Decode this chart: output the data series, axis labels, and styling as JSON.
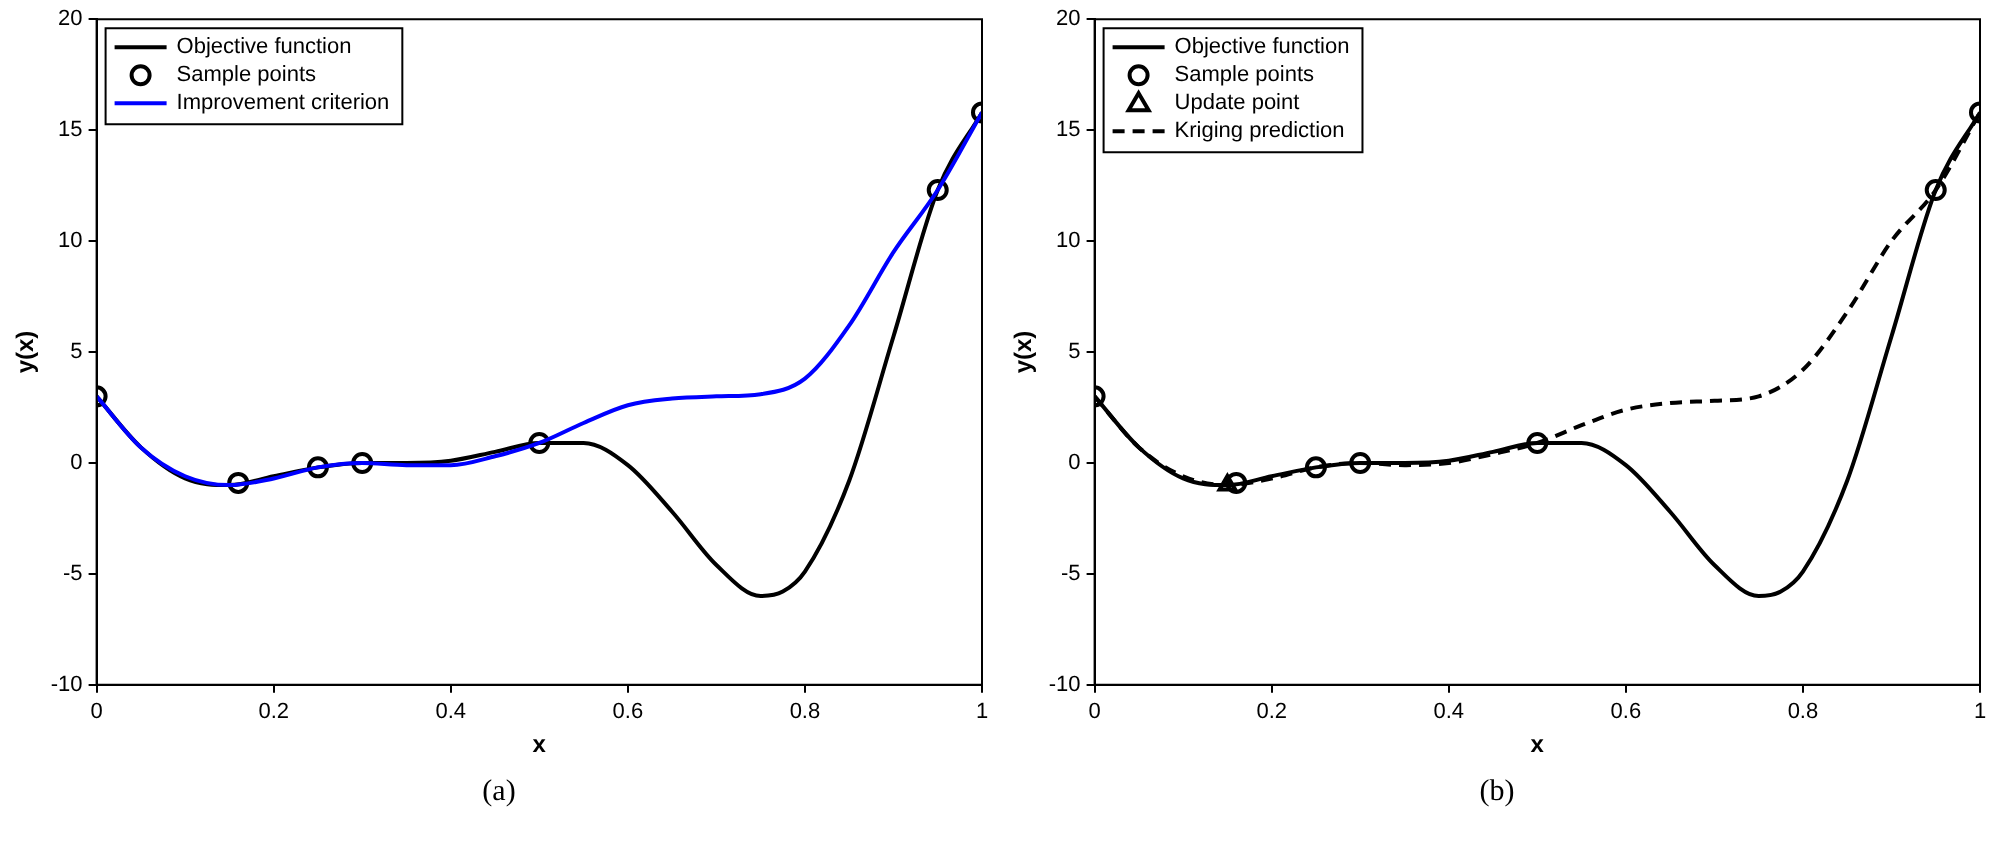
{
  "chart_data": [
    {
      "type": "line",
      "xlabel": "x",
      "ylabel": "y(x)",
      "xlim": [
        0,
        1
      ],
      "xticks": [
        0,
        0.2,
        0.4,
        0.6,
        0.8,
        1
      ],
      "ylim": [
        -10,
        20
      ],
      "yticks": [
        -10,
        -5,
        0,
        5,
        10,
        15,
        20
      ],
      "grid": false,
      "legend": "top left",
      "annotations": [
        "(a)"
      ],
      "series": [
        {
          "name": "Objective function",
          "type": "line",
          "color": "#000000",
          "marker": "none",
          "line_style": "solid",
          "x": [
            0,
            0.05,
            0.1,
            0.15,
            0.2,
            0.25,
            0.3,
            0.35,
            0.4,
            0.45,
            0.5,
            0.55,
            0.6,
            0.65,
            0.7,
            0.75,
            0.775,
            0.8,
            0.85,
            0.9,
            0.95,
            1
          ],
          "values": [
            3.0,
            0.7,
            -0.7,
            -1.0,
            -0.6,
            -0.2,
            0.0,
            0.0,
            0.1,
            0.5,
            0.9,
            0.9,
            -0.1,
            -2.2,
            -4.6,
            -6.0,
            -5.8,
            -4.9,
            -0.8,
            5.7,
            12.3,
            15.8
          ]
        },
        {
          "name": "Sample points",
          "type": "scatter",
          "color": "#000000",
          "marker": "circle",
          "x": [
            0,
            0.16,
            0.25,
            0.3,
            0.5,
            0.95,
            1
          ],
          "values": [
            3.0,
            -0.9,
            -0.2,
            0.0,
            0.9,
            12.3,
            15.8
          ]
        },
        {
          "name": "Improvement criterion",
          "type": "line",
          "color": "#0000ff",
          "marker": "none",
          "line_style": "solid",
          "x": [
            0,
            0.05,
            0.1,
            0.15,
            0.2,
            0.25,
            0.3,
            0.35,
            0.4,
            0.45,
            0.5,
            0.55,
            0.6,
            0.65,
            0.7,
            0.75,
            0.8,
            0.85,
            0.9,
            0.95,
            1
          ],
          "values": [
            3.0,
            0.7,
            -0.6,
            -1.0,
            -0.7,
            -0.2,
            0.0,
            -0.1,
            -0.1,
            0.3,
            0.9,
            1.8,
            2.6,
            2.9,
            3.0,
            3.1,
            3.8,
            6.2,
            9.5,
            12.3,
            15.8
          ]
        }
      ]
    },
    {
      "type": "line",
      "xlabel": "x",
      "ylabel": "y(x)",
      "xlim": [
        0,
        1
      ],
      "xticks": [
        0,
        0.2,
        0.4,
        0.6,
        0.8,
        1
      ],
      "ylim": [
        -10,
        20
      ],
      "yticks": [
        -10,
        -5,
        0,
        5,
        10,
        15,
        20
      ],
      "grid": false,
      "legend": "top left",
      "annotations": [
        "(b)"
      ],
      "series": [
        {
          "name": "Objective function",
          "type": "line",
          "color": "#000000",
          "marker": "none",
          "line_style": "solid",
          "x": [
            0,
            0.05,
            0.1,
            0.15,
            0.2,
            0.25,
            0.3,
            0.35,
            0.4,
            0.45,
            0.5,
            0.55,
            0.6,
            0.65,
            0.7,
            0.75,
            0.775,
            0.8,
            0.85,
            0.9,
            0.95,
            1
          ],
          "values": [
            3.0,
            0.7,
            -0.7,
            -1.0,
            -0.6,
            -0.2,
            0.0,
            0.0,
            0.1,
            0.5,
            0.9,
            0.9,
            -0.1,
            -2.2,
            -4.6,
            -6.0,
            -5.8,
            -4.9,
            -0.8,
            5.7,
            12.3,
            15.8
          ]
        },
        {
          "name": "Sample points",
          "type": "scatter",
          "color": "#000000",
          "marker": "circle",
          "x": [
            0,
            0.16,
            0.25,
            0.3,
            0.5,
            0.95,
            1
          ],
          "values": [
            3.0,
            -0.9,
            -0.2,
            0.0,
            0.9,
            12.3,
            15.8
          ]
        },
        {
          "name": "Update point",
          "type": "scatter",
          "color": "#000000",
          "marker": "triangle",
          "x": [
            0.15
          ],
          "values": [
            -1.0
          ]
        },
        {
          "name": "Kriging prediction",
          "type": "line",
          "color": "#000000",
          "marker": "none",
          "line_style": "dashed",
          "x": [
            0,
            0.05,
            0.1,
            0.15,
            0.2,
            0.25,
            0.3,
            0.35,
            0.4,
            0.45,
            0.5,
            0.55,
            0.6,
            0.65,
            0.7,
            0.75,
            0.8,
            0.85,
            0.9,
            0.95,
            1
          ],
          "values": [
            3.0,
            0.7,
            -0.6,
            -1.0,
            -0.7,
            -0.2,
            0.0,
            -0.1,
            0.0,
            0.4,
            0.9,
            1.7,
            2.4,
            2.7,
            2.8,
            3.0,
            4.2,
            6.8,
            10.0,
            12.3,
            15.8
          ]
        }
      ]
    }
  ]
}
